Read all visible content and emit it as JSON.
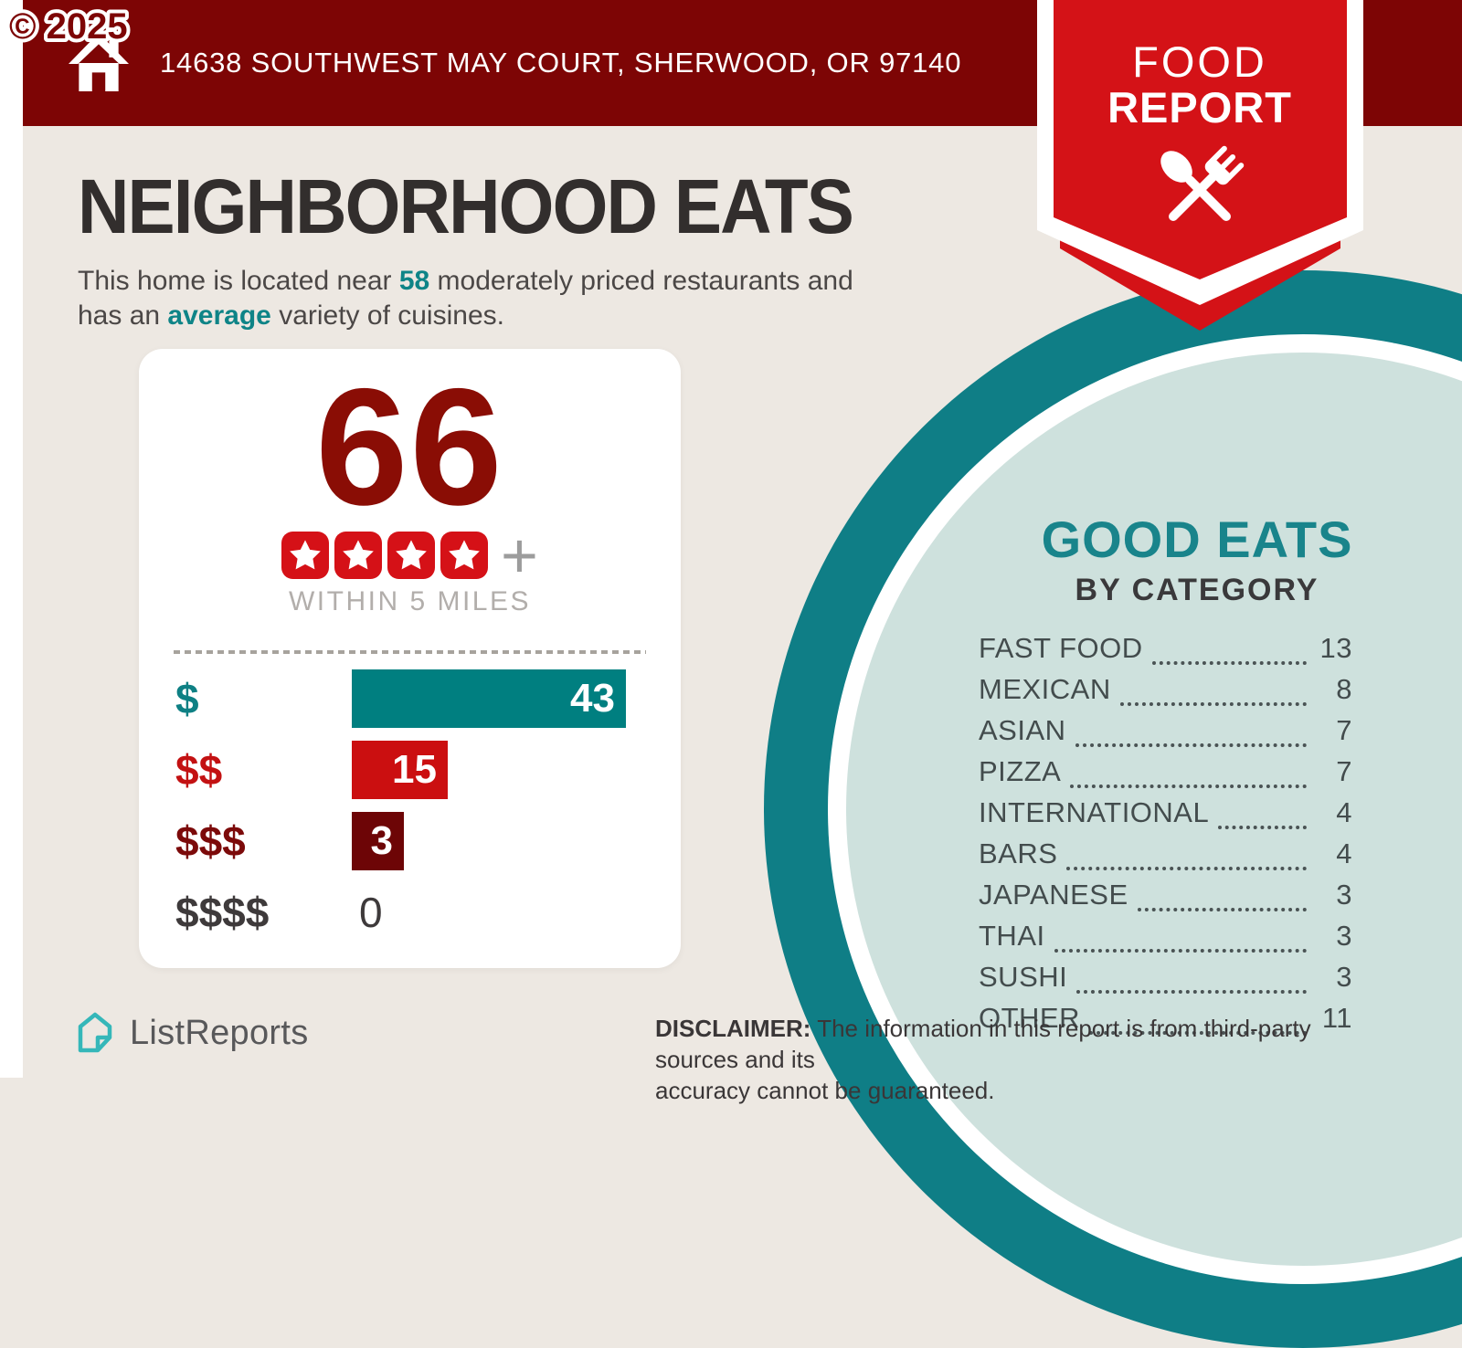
{
  "watermark": "© 2025",
  "header": {
    "address": "14638 SOUTHWEST MAY COURT, SHERWOOD, OR 97140"
  },
  "ribbon": {
    "line1": "FOOD",
    "line2": "REPORT",
    "icon": "crossed-spoon-and-fork",
    "red": "#d41217"
  },
  "intro": {
    "title": "NEIGHBORHOOD EATS",
    "subtitle_prefix": "This home is located near ",
    "subtitle_highlight1": "58",
    "subtitle_mid": " moderately priced restaurants and\nhas an ",
    "subtitle_highlight2": "average",
    "subtitle_suffix": " variety of cuisines."
  },
  "score_card": {
    "score": "66",
    "star_count": 4,
    "plus_label": "+",
    "radius_label": "WITHIN 5 MILES",
    "score_color": "#8a0d05",
    "star_badge_color": "#d51117"
  },
  "good_eats": {
    "title": "GOOD EATS",
    "subtitle": "BY CATEGORY"
  },
  "footer": {
    "brand": "ListReports",
    "disclaimer_label": "DISCLAIMER:",
    "disclaimer_text": " The information in this report is from third-party sources and its\naccuracy cannot be guaranteed."
  },
  "colors": {
    "background": "#ede8e2",
    "header_maroon": "#7d0505",
    "ribbon_red": "#d41217",
    "teal": "#007f80",
    "bright_red": "#cb0f10",
    "dark_maroon": "#6d0506",
    "charcoal": "#3e3a3b",
    "circle_teal": "#0f7e86",
    "circle_seafoam": "#cee1dd",
    "highlight_teal": "#0e8487",
    "brand_teal": "#35b7b9"
  },
  "chart_data": [
    {
      "type": "bar",
      "orientation": "horizontal",
      "title": "WITHIN 5 MILES",
      "categories": [
        "$",
        "$$",
        "$$$",
        "$$$$"
      ],
      "values": [
        43,
        15,
        3,
        0
      ],
      "xlim": [
        0,
        43
      ],
      "grid": false,
      "legend": false,
      "bar_colors": [
        "#007f80",
        "#cb0f10",
        "#6d0506",
        null
      ],
      "label_colors": [
        "#0e8084",
        "#c31112",
        "#7c0a0a",
        "#3e3a3b"
      ],
      "value_label_position": "inside-end"
    },
    {
      "type": "table",
      "title": "GOOD EATS BY CATEGORY",
      "categories": [
        "FAST FOOD",
        "MEXICAN",
        "ASIAN",
        "PIZZA",
        "INTERNATIONAL",
        "BARS",
        "JAPANESE",
        "THAI",
        "SUSHI",
        "OTHER"
      ],
      "values": [
        13,
        8,
        7,
        7,
        4,
        4,
        3,
        3,
        3,
        11
      ]
    }
  ]
}
